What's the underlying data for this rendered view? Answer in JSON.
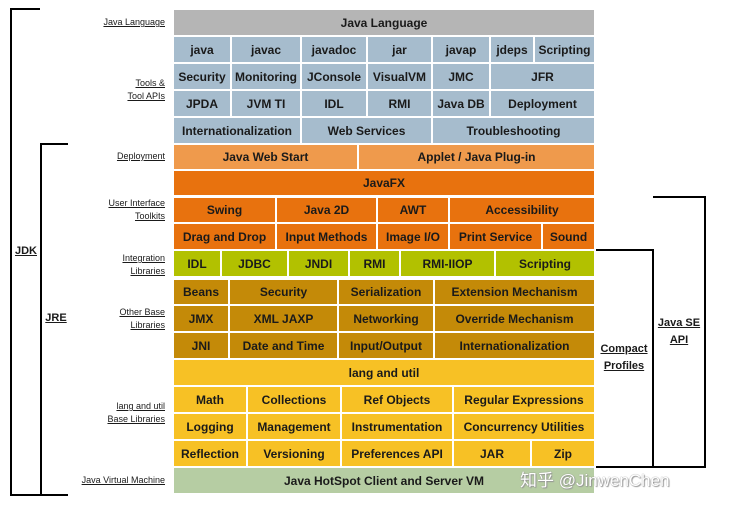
{
  "row_labels": {
    "java_language": "Java Language",
    "tools_1": "Tools &",
    "tools_2": "Tool APIs",
    "deployment": "Deployment",
    "ui_1": "User Interface",
    "ui_2": "Toolkits",
    "integration_1": "Integration",
    "integration_2": "Libraries",
    "other_1": "Other Base",
    "other_2": "Libraries",
    "langutil_1": "lang and util",
    "langutil_2": "Base Libraries",
    "jvm": "Java Virtual Machine"
  },
  "bracket_labels": {
    "jdk": "JDK",
    "jre": "JRE",
    "compact_1": "Compact",
    "compact_2": "Profiles",
    "javase_1": "Java SE",
    "javase_2": "API"
  },
  "java_language": "Java Language",
  "tools": {
    "r1": [
      "java",
      "javac",
      "javadoc",
      "jar",
      "javap",
      "jdeps",
      "Scripting"
    ],
    "r2": [
      "Security",
      "Monitoring",
      "JConsole",
      "VisualVM",
      "JMC",
      "JFR"
    ],
    "r3": [
      "JPDA",
      "JVM TI",
      "IDL",
      "RMI",
      "Java DB",
      "Deployment"
    ],
    "r4": [
      "Internationalization",
      "Web Services",
      "Troubleshooting"
    ]
  },
  "deployment": [
    "Java Web Start",
    "Applet / Java Plug-in"
  ],
  "javafx": "JavaFX",
  "ui": {
    "r1": [
      "Swing",
      "Java 2D",
      "AWT",
      "Accessibility"
    ],
    "r2": [
      "Drag and Drop",
      "Input Methods",
      "Image I/O",
      "Print Service",
      "Sound"
    ]
  },
  "integration": [
    "IDL",
    "JDBC",
    "JNDI",
    "RMI",
    "RMI-IIOP",
    "Scripting"
  ],
  "other": {
    "r1": [
      "Beans",
      "Security",
      "Serialization",
      "Extension Mechanism"
    ],
    "r2": [
      "JMX",
      "XML JAXP",
      "Networking",
      "Override Mechanism"
    ],
    "r3": [
      "JNI",
      "Date and Time",
      "Input/Output",
      "Internationalization"
    ]
  },
  "lang_util_title": "lang and util",
  "lang_util": {
    "r1": [
      "Math",
      "Collections",
      "Ref Objects",
      "Regular Expressions"
    ],
    "r2": [
      "Logging",
      "Management",
      "Instrumentation",
      "Concurrency Utilities"
    ],
    "r3": [
      "Reflection",
      "Versioning",
      "Preferences API",
      "JAR",
      "Zip"
    ]
  },
  "jvm": "Java HotSpot Client and Server VM",
  "watermark": "知乎 @JinwenChen",
  "colors": {
    "language": "#b5b5b5",
    "tools": "#a6bccd",
    "deployment": "#ef9a4c",
    "ui": "#e8720e",
    "integration": "#b2c100",
    "other": "#c48a08",
    "lang_util": "#f7c125",
    "jvm": "#b6cda3"
  }
}
